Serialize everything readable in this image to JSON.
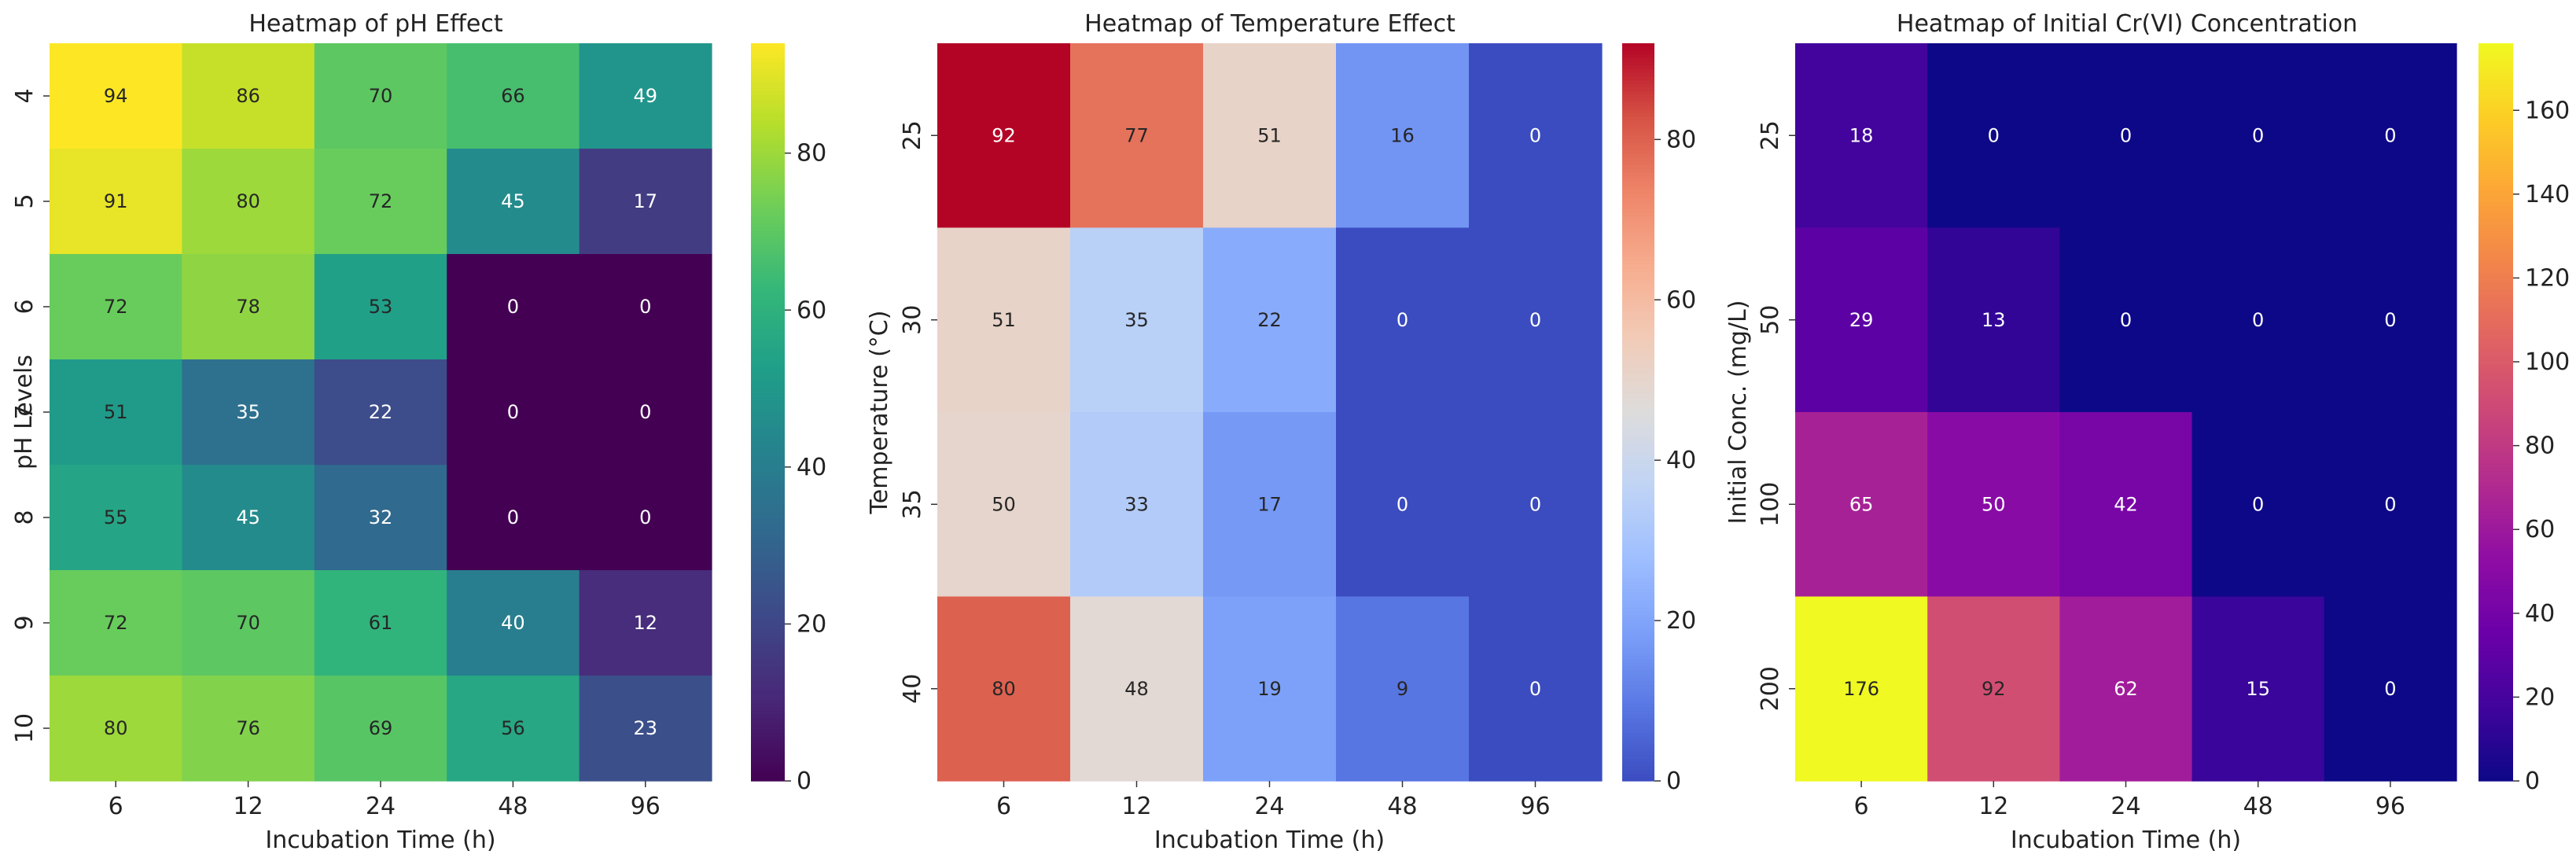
{
  "chart_data": [
    {
      "type": "heatmap",
      "title": "Heatmap of pH Effect",
      "xlabel": "Incubation Time (h)",
      "ylabel": "pH Levels",
      "x_categories": [
        "6",
        "12",
        "24",
        "48",
        "96"
      ],
      "y_categories": [
        "4",
        "5",
        "6",
        "7",
        "8",
        "9",
        "10"
      ],
      "values": [
        [
          94,
          86,
          70,
          66,
          49
        ],
        [
          91,
          80,
          72,
          45,
          17
        ],
        [
          72,
          78,
          53,
          0,
          0
        ],
        [
          51,
          35,
          22,
          0,
          0
        ],
        [
          55,
          45,
          32,
          0,
          0
        ],
        [
          72,
          70,
          61,
          40,
          12
        ],
        [
          80,
          76,
          69,
          56,
          23
        ]
      ],
      "colormap": "viridis",
      "vmin": 0,
      "vmax": 94,
      "colorbar_ticks": [
        "0",
        "20",
        "40",
        "60",
        "80"
      ]
    },
    {
      "type": "heatmap",
      "title": "Heatmap of Temperature Effect",
      "xlabel": "Incubation Time (h)",
      "ylabel": "Temperature (°C)",
      "x_categories": [
        "6",
        "12",
        "24",
        "48",
        "96"
      ],
      "y_categories": [
        "25",
        "30",
        "35",
        "40"
      ],
      "values": [
        [
          92,
          77,
          51,
          16,
          0
        ],
        [
          51,
          35,
          22,
          0,
          0
        ],
        [
          50,
          33,
          17,
          0,
          0
        ],
        [
          80,
          48,
          19,
          9,
          0
        ]
      ],
      "colormap": "coolwarm",
      "vmin": 0,
      "vmax": 92,
      "colorbar_ticks": [
        "0",
        "20",
        "40",
        "60",
        "80"
      ]
    },
    {
      "type": "heatmap",
      "title": "Heatmap of Initial Cr(VI) Concentration",
      "xlabel": "Incubation Time (h)",
      "ylabel": "Initial Conc. (mg/L)",
      "x_categories": [
        "6",
        "12",
        "24",
        "48",
        "96"
      ],
      "y_categories": [
        "25",
        "50",
        "100",
        "200"
      ],
      "values": [
        [
          18,
          0,
          0,
          0,
          0
        ],
        [
          29,
          13,
          0,
          0,
          0
        ],
        [
          65,
          50,
          42,
          0,
          0
        ],
        [
          176,
          92,
          62,
          15,
          0
        ]
      ],
      "colormap": "plasma",
      "vmin": 0,
      "vmax": 176,
      "colorbar_ticks": [
        "0",
        "20",
        "40",
        "60",
        "80",
        "100",
        "120",
        "140",
        "160"
      ]
    }
  ]
}
